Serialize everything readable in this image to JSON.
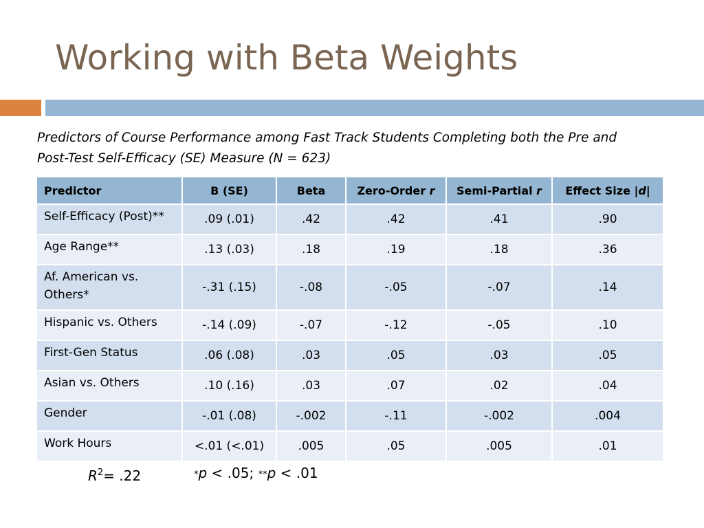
{
  "title": "Working with Beta Weights",
  "caption": {
    "line1": "Predictors of Course Performance among Fast Track Students Completing both the Pre and",
    "line2": "Post-Test Self-Efficacy (SE) Measure (N = 623)"
  },
  "table": {
    "headers": {
      "predictor": "Predictor",
      "b_se": "B (SE)",
      "beta": "Beta",
      "zero_order_prefix": "Zero-Order ",
      "zero_order_r": "r",
      "semi_partial_prefix": "Semi-Partial ",
      "semi_partial_r": "r",
      "effect_prefix": "Effect Size |",
      "effect_d": "d",
      "effect_suffix": "|"
    },
    "rows": [
      {
        "predictor": "Self-Efficacy (Post)**",
        "b_se": ".09 (.01)",
        "beta": ".42",
        "zero_order": ".42",
        "semi_partial": ".41",
        "effect": ".90"
      },
      {
        "predictor": "Age Range**",
        "b_se": ".13 (.03)",
        "beta": ".18",
        "zero_order": ".19",
        "semi_partial": ".18",
        "effect": ".36"
      },
      {
        "predictor_line1": "Af. American vs.",
        "predictor_line2": "Others*",
        "b_se": "-.31 (.15)",
        "beta": "-.08",
        "zero_order": "-.05",
        "semi_partial": "-.07",
        "effect": ".14"
      },
      {
        "predictor": "Hispanic vs. Others",
        "b_se": "-.14 (.09)",
        "beta": "-.07",
        "zero_order": "-.12",
        "semi_partial": "-.05",
        "effect": ".10"
      },
      {
        "predictor": "First-Gen Status",
        "b_se": ".06 (.08)",
        "beta": ".03",
        "zero_order": ".05",
        "semi_partial": ".03",
        "effect": ".05"
      },
      {
        "predictor": "Asian vs. Others",
        "b_se": ".10 (.16)",
        "beta": ".03",
        "zero_order": ".07",
        "semi_partial": ".02",
        "effect": ".04"
      },
      {
        "predictor": "Gender",
        "b_se": "-.01 (.08)",
        "beta": "-.002",
        "zero_order": "-.11",
        "semi_partial": "-.002",
        "effect": ".004"
      },
      {
        "predictor": "Work Hours",
        "b_se": "<.01 (<.01)",
        "beta": ".005",
        "zero_order": ".05",
        "semi_partial": ".005",
        "effect": ".01"
      }
    ]
  },
  "footnote": {
    "r_label": "R",
    "r_sup": "2",
    "r_value": "= .22",
    "p_star1": "*",
    "p_text1": "p",
    "p_val1": " < .05; ",
    "p_star2": "**",
    "p_text2": "p",
    "p_val2": " < .01"
  },
  "colors": {
    "title": "#7a6552",
    "accent_orange": "#dc843f",
    "accent_blue": "#94b6d2",
    "header_bg": "#94b6d2",
    "row_odd": "#d3dfee",
    "row_even": "#eaeff7"
  }
}
